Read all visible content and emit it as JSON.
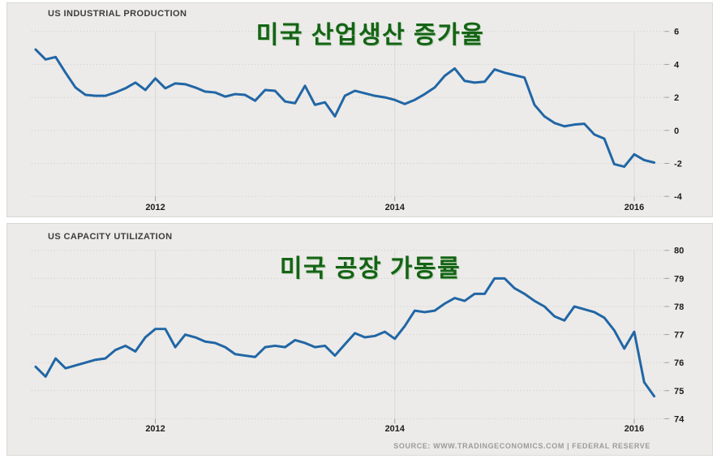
{
  "page": {
    "background": "#ffffff",
    "panel_background": "#ecebe9",
    "line_color": "#2166a5",
    "title_color": "#156315",
    "source_text": "SOURCE: WWW.TRADINGECONOMICS.COM | FEDERAL RESERVE"
  },
  "chart_data": [
    {
      "type": "line",
      "label": "US INDUSTRIAL PRODUCTION",
      "title": "미국 산업생산 증가율",
      "frequency": "monthly",
      "x_range": [
        2011.0,
        2016.17
      ],
      "x_tick_labels": [
        "2012",
        "2014",
        "2016"
      ],
      "y_tick_labels": [
        6,
        4,
        2,
        0,
        -2,
        -4
      ],
      "ylim": [
        -4,
        6
      ],
      "grid": true,
      "legend": "none",
      "values": [
        4.9,
        4.3,
        4.45,
        3.5,
        2.6,
        2.15,
        2.1,
        2.1,
        2.3,
        2.55,
        2.9,
        2.45,
        3.15,
        2.55,
        2.85,
        2.8,
        2.6,
        2.35,
        2.3,
        2.05,
        2.2,
        2.15,
        1.8,
        2.45,
        2.4,
        1.75,
        1.65,
        2.7,
        1.55,
        1.7,
        0.85,
        2.1,
        2.4,
        2.25,
        2.1,
        2.0,
        1.85,
        1.6,
        1.85,
        2.2,
        2.6,
        3.3,
        3.75,
        3.0,
        2.9,
        2.95,
        3.7,
        3.5,
        3.35,
        3.2,
        1.55,
        0.85,
        0.45,
        0.25,
        0.35,
        0.4,
        -0.25,
        -0.5,
        -2.05,
        -2.2,
        -1.45,
        -1.8,
        -1.95
      ]
    },
    {
      "type": "line",
      "label": "US CAPACITY UTILIZATION",
      "title": "미국 공장 가동률",
      "frequency": "monthly",
      "x_range": [
        2011.0,
        2016.17
      ],
      "x_tick_labels": [
        "2012",
        "2014",
        "2016"
      ],
      "y_tick_labels": [
        80,
        79,
        78,
        77,
        76,
        75,
        74
      ],
      "ylim": [
        74,
        80
      ],
      "grid": true,
      "legend": "none",
      "values": [
        75.85,
        75.5,
        76.15,
        75.8,
        75.9,
        76.0,
        76.1,
        76.15,
        76.45,
        76.6,
        76.4,
        76.9,
        77.2,
        77.2,
        76.55,
        77.0,
        76.9,
        76.75,
        76.7,
        76.55,
        76.3,
        76.25,
        76.2,
        76.55,
        76.6,
        76.55,
        76.8,
        76.7,
        76.55,
        76.6,
        76.25,
        76.65,
        77.05,
        76.9,
        76.95,
        77.1,
        76.85,
        77.3,
        77.85,
        77.8,
        77.85,
        78.1,
        78.3,
        78.2,
        78.45,
        78.45,
        79.0,
        79.0,
        78.65,
        78.45,
        78.2,
        78.0,
        77.65,
        77.5,
        78.0,
        77.9,
        77.8,
        77.6,
        77.15,
        76.5,
        77.1,
        75.3,
        74.8
      ]
    }
  ]
}
